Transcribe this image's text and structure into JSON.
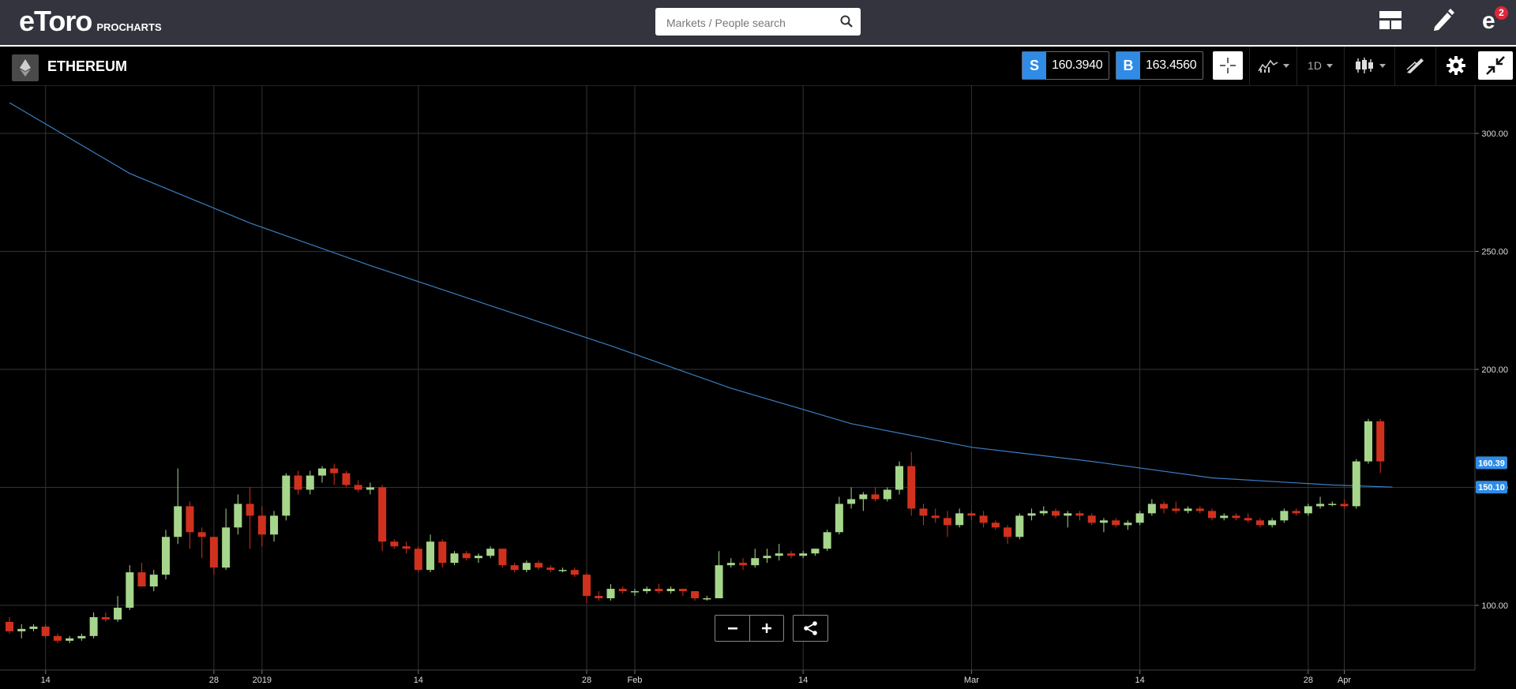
{
  "header": {
    "logo": "eToro",
    "logo_sub": "PROCHARTS",
    "search_placeholder": "Markets / People search",
    "notifications_count": "2"
  },
  "toolbar": {
    "instrument": "ETHEREUM",
    "sell_label": "S",
    "sell_price": "160.3940",
    "buy_label": "B",
    "buy_price": "163.4560",
    "interval": "1D"
  },
  "chart_data": {
    "type": "candlestick",
    "title": "",
    "ylim": [
      83,
      323
    ],
    "y_ticks": [
      100,
      150,
      200,
      250,
      300
    ],
    "y_tick_labels": [
      "100.00",
      "150.00",
      "200.00",
      "250.00",
      "300.00"
    ],
    "x_ticks": [
      {
        "index": 3,
        "label": "14"
      },
      {
        "index": 17,
        "label": "28"
      },
      {
        "index": 21,
        "label": "2019"
      },
      {
        "index": 34,
        "label": "14"
      },
      {
        "index": 48,
        "label": "28"
      },
      {
        "index": 52,
        "label": "Feb"
      },
      {
        "index": 66,
        "label": "14"
      },
      {
        "index": 80,
        "label": "Mar"
      },
      {
        "index": 94,
        "label": "14"
      },
      {
        "index": 108,
        "label": "28"
      },
      {
        "index": 111,
        "label": "Apr"
      }
    ],
    "price_tags": [
      {
        "value": 160.39,
        "label": "160.39",
        "color": "#2f8be6"
      },
      {
        "value": 150.1,
        "label": "150.10",
        "color": "#2f8be6"
      }
    ],
    "moving_average": {
      "color": "#3a7fc4",
      "values": [
        [
          0,
          313
        ],
        [
          10,
          283
        ],
        [
          20,
          262
        ],
        [
          30,
          244
        ],
        [
          40,
          227
        ],
        [
          50,
          210
        ],
        [
          60,
          192
        ],
        [
          70,
          177
        ],
        [
          80,
          167
        ],
        [
          90,
          161
        ],
        [
          100,
          154
        ],
        [
          110,
          151
        ],
        [
          115,
          150.1
        ]
      ]
    },
    "colors": {
      "up": "#a6d68c",
      "down": "#d0311e",
      "grid": "#333333",
      "axis": "#444444"
    },
    "candles": [
      {
        "o": 93,
        "h": 95,
        "l": 88,
        "c": 89
      },
      {
        "o": 89,
        "h": 92,
        "l": 86,
        "c": 90
      },
      {
        "o": 90,
        "h": 92,
        "l": 89,
        "c": 91
      },
      {
        "o": 91,
        "h": 92,
        "l": 86,
        "c": 87
      },
      {
        "o": 87,
        "h": 88,
        "l": 84,
        "c": 85
      },
      {
        "o": 85,
        "h": 87,
        "l": 84,
        "c": 86
      },
      {
        "o": 86,
        "h": 88,
        "l": 85,
        "c": 87
      },
      {
        "o": 87,
        "h": 97,
        "l": 86,
        "c": 95
      },
      {
        "o": 95,
        "h": 97,
        "l": 93,
        "c": 94
      },
      {
        "o": 94,
        "h": 104,
        "l": 93,
        "c": 99
      },
      {
        "o": 99,
        "h": 117,
        "l": 98,
        "c": 114
      },
      {
        "o": 114,
        "h": 118,
        "l": 108,
        "c": 108
      },
      {
        "o": 108,
        "h": 115,
        "l": 106,
        "c": 113
      },
      {
        "o": 113,
        "h": 132,
        "l": 111,
        "c": 129
      },
      {
        "o": 129,
        "h": 158,
        "l": 126,
        "c": 142
      },
      {
        "o": 142,
        "h": 144,
        "l": 124,
        "c": 131
      },
      {
        "o": 131,
        "h": 133,
        "l": 120,
        "c": 129
      },
      {
        "o": 129,
        "h": 129,
        "l": 113,
        "c": 116
      },
      {
        "o": 116,
        "h": 141,
        "l": 115,
        "c": 133
      },
      {
        "o": 133,
        "h": 147,
        "l": 130,
        "c": 143
      },
      {
        "o": 143,
        "h": 150,
        "l": 124,
        "c": 138
      },
      {
        "o": 138,
        "h": 142,
        "l": 125,
        "c": 130
      },
      {
        "o": 130,
        "h": 140,
        "l": 127,
        "c": 138
      },
      {
        "o": 138,
        "h": 156,
        "l": 136,
        "c": 155
      },
      {
        "o": 155,
        "h": 157,
        "l": 147,
        "c": 149
      },
      {
        "o": 149,
        "h": 157,
        "l": 147,
        "c": 155
      },
      {
        "o": 155,
        "h": 159,
        "l": 152,
        "c": 158
      },
      {
        "o": 158,
        "h": 160,
        "l": 151,
        "c": 156
      },
      {
        "o": 156,
        "h": 157,
        "l": 150,
        "c": 151
      },
      {
        "o": 151,
        "h": 153,
        "l": 148,
        "c": 149
      },
      {
        "o": 149,
        "h": 152,
        "l": 147,
        "c": 150
      },
      {
        "o": 150,
        "h": 151,
        "l": 123,
        "c": 127
      },
      {
        "o": 127,
        "h": 128,
        "l": 124,
        "c": 125
      },
      {
        "o": 125,
        "h": 127,
        "l": 122,
        "c": 124
      },
      {
        "o": 124,
        "h": 125,
        "l": 114,
        "c": 115
      },
      {
        "o": 115,
        "h": 130,
        "l": 114,
        "c": 127
      },
      {
        "o": 127,
        "h": 128,
        "l": 116,
        "c": 118
      },
      {
        "o": 118,
        "h": 123,
        "l": 117,
        "c": 122
      },
      {
        "o": 122,
        "h": 123,
        "l": 119,
        "c": 120
      },
      {
        "o": 120,
        "h": 122,
        "l": 118,
        "c": 121
      },
      {
        "o": 121,
        "h": 125,
        "l": 120,
        "c": 124
      },
      {
        "o": 124,
        "h": 124,
        "l": 116,
        "c": 117
      },
      {
        "o": 117,
        "h": 118,
        "l": 114,
        "c": 115
      },
      {
        "o": 115,
        "h": 119,
        "l": 114,
        "c": 118
      },
      {
        "o": 118,
        "h": 119,
        "l": 115,
        "c": 116
      },
      {
        "o": 116,
        "h": 117,
        "l": 114,
        "c": 115
      },
      {
        "o": 115,
        "h": 116,
        "l": 114,
        "c": 115
      },
      {
        "o": 115,
        "h": 116,
        "l": 112,
        "c": 113
      },
      {
        "o": 113,
        "h": 114,
        "l": 101,
        "c": 104
      },
      {
        "o": 104,
        "h": 106,
        "l": 102,
        "c": 103
      },
      {
        "o": 103,
        "h": 109,
        "l": 102,
        "c": 107
      },
      {
        "o": 107,
        "h": 108,
        "l": 105,
        "c": 106
      },
      {
        "o": 106,
        "h": 107,
        "l": 104,
        "c": 106
      },
      {
        "o": 106,
        "h": 108,
        "l": 105,
        "c": 107
      },
      {
        "o": 107,
        "h": 109,
        "l": 105,
        "c": 106
      },
      {
        "o": 106,
        "h": 108,
        "l": 105,
        "c": 107
      },
      {
        "o": 107,
        "h": 107,
        "l": 104,
        "c": 106
      },
      {
        "o": 106,
        "h": 106,
        "l": 102,
        "c": 103
      },
      {
        "o": 103,
        "h": 104,
        "l": 102,
        "c": 103
      },
      {
        "o": 103,
        "h": 123,
        "l": 103,
        "c": 117
      },
      {
        "o": 117,
        "h": 120,
        "l": 116,
        "c": 118
      },
      {
        "o": 118,
        "h": 120,
        "l": 115,
        "c": 117
      },
      {
        "o": 117,
        "h": 124,
        "l": 116,
        "c": 120
      },
      {
        "o": 120,
        "h": 124,
        "l": 118,
        "c": 121
      },
      {
        "o": 121,
        "h": 126,
        "l": 119,
        "c": 122
      },
      {
        "o": 122,
        "h": 123,
        "l": 120,
        "c": 121
      },
      {
        "o": 121,
        "h": 123,
        "l": 120,
        "c": 122
      },
      {
        "o": 122,
        "h": 124,
        "l": 121,
        "c": 124
      },
      {
        "o": 124,
        "h": 132,
        "l": 123,
        "c": 131
      },
      {
        "o": 131,
        "h": 146,
        "l": 130,
        "c": 143
      },
      {
        "o": 143,
        "h": 150,
        "l": 141,
        "c": 145
      },
      {
        "o": 145,
        "h": 148,
        "l": 140,
        "c": 147
      },
      {
        "o": 147,
        "h": 150,
        "l": 144,
        "c": 145
      },
      {
        "o": 145,
        "h": 150,
        "l": 144,
        "c": 149
      },
      {
        "o": 149,
        "h": 161,
        "l": 147,
        "c": 159
      },
      {
        "o": 159,
        "h": 165,
        "l": 138,
        "c": 141
      },
      {
        "o": 141,
        "h": 143,
        "l": 134,
        "c": 138
      },
      {
        "o": 138,
        "h": 141,
        "l": 135,
        "c": 137
      },
      {
        "o": 137,
        "h": 140,
        "l": 129,
        "c": 134
      },
      {
        "o": 134,
        "h": 141,
        "l": 133,
        "c": 139
      },
      {
        "o": 139,
        "h": 140,
        "l": 136,
        "c": 138
      },
      {
        "o": 138,
        "h": 140,
        "l": 133,
        "c": 135
      },
      {
        "o": 135,
        "h": 136,
        "l": 132,
        "c": 133
      },
      {
        "o": 133,
        "h": 134,
        "l": 126,
        "c": 129
      },
      {
        "o": 129,
        "h": 139,
        "l": 128,
        "c": 138
      },
      {
        "o": 138,
        "h": 141,
        "l": 136,
        "c": 139
      },
      {
        "o": 139,
        "h": 142,
        "l": 138,
        "c": 140
      },
      {
        "o": 140,
        "h": 141,
        "l": 137,
        "c": 138
      },
      {
        "o": 138,
        "h": 140,
        "l": 133,
        "c": 139
      },
      {
        "o": 139,
        "h": 140,
        "l": 136,
        "c": 138
      },
      {
        "o": 138,
        "h": 139,
        "l": 134,
        "c": 135
      },
      {
        "o": 135,
        "h": 137,
        "l": 131,
        "c": 136
      },
      {
        "o": 136,
        "h": 137,
        "l": 133,
        "c": 134
      },
      {
        "o": 134,
        "h": 136,
        "l": 132,
        "c": 135
      },
      {
        "o": 135,
        "h": 140,
        "l": 134,
        "c": 139
      },
      {
        "o": 139,
        "h": 145,
        "l": 138,
        "c": 143
      },
      {
        "o": 143,
        "h": 144,
        "l": 139,
        "c": 141
      },
      {
        "o": 141,
        "h": 144,
        "l": 139,
        "c": 140
      },
      {
        "o": 140,
        "h": 142,
        "l": 139,
        "c": 141
      },
      {
        "o": 141,
        "h": 142,
        "l": 139,
        "c": 140
      },
      {
        "o": 140,
        "h": 141,
        "l": 136,
        "c": 137
      },
      {
        "o": 137,
        "h": 139,
        "l": 136,
        "c": 138
      },
      {
        "o": 138,
        "h": 139,
        "l": 136,
        "c": 137
      },
      {
        "o": 137,
        "h": 139,
        "l": 135,
        "c": 136
      },
      {
        "o": 136,
        "h": 137,
        "l": 133,
        "c": 134
      },
      {
        "o": 134,
        "h": 137,
        "l": 133,
        "c": 136
      },
      {
        "o": 136,
        "h": 141,
        "l": 135,
        "c": 140
      },
      {
        "o": 140,
        "h": 141,
        "l": 138,
        "c": 139
      },
      {
        "o": 139,
        "h": 143,
        "l": 138,
        "c": 142
      },
      {
        "o": 142,
        "h": 146,
        "l": 141,
        "c": 143
      },
      {
        "o": 143,
        "h": 144,
        "l": 142,
        "c": 143
      },
      {
        "o": 143,
        "h": 145,
        "l": 141,
        "c": 142
      },
      {
        "o": 142,
        "h": 162,
        "l": 141,
        "c": 161
      },
      {
        "o": 161,
        "h": 179,
        "l": 160,
        "c": 178
      },
      {
        "o": 178,
        "h": 179,
        "l": 156,
        "c": 161
      }
    ]
  }
}
